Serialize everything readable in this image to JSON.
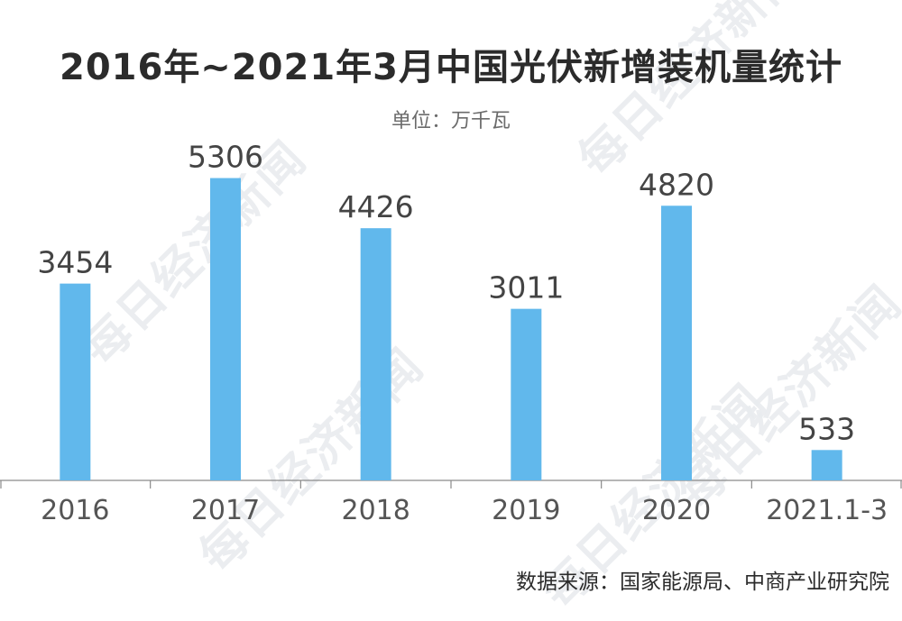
{
  "title": "2016年~2021年3月中国光伏新增装机量统计",
  "unit_label": "单位：万千瓦",
  "source": "数据来源：国家能源局、中商产业研究院",
  "watermark_text": "每日经济新闻",
  "colors": {
    "bar": "#61b8ec",
    "title": "#2b2b2b",
    "text": "#444444",
    "watermark": "#e9ecef"
  },
  "chart_data": {
    "type": "bar",
    "title": "2016年~2021年3月中国光伏新增装机量统计",
    "subtitle": "单位：万千瓦",
    "categories": [
      "2016",
      "2017",
      "2018",
      "2019",
      "2020",
      "2021.1-3"
    ],
    "values": [
      3454,
      5306,
      4426,
      3011,
      4820,
      533
    ],
    "ylim": [
      0,
      5900
    ],
    "xlabel": "",
    "ylabel": "",
    "grid": false,
    "legend": "none",
    "data_labels": true
  }
}
